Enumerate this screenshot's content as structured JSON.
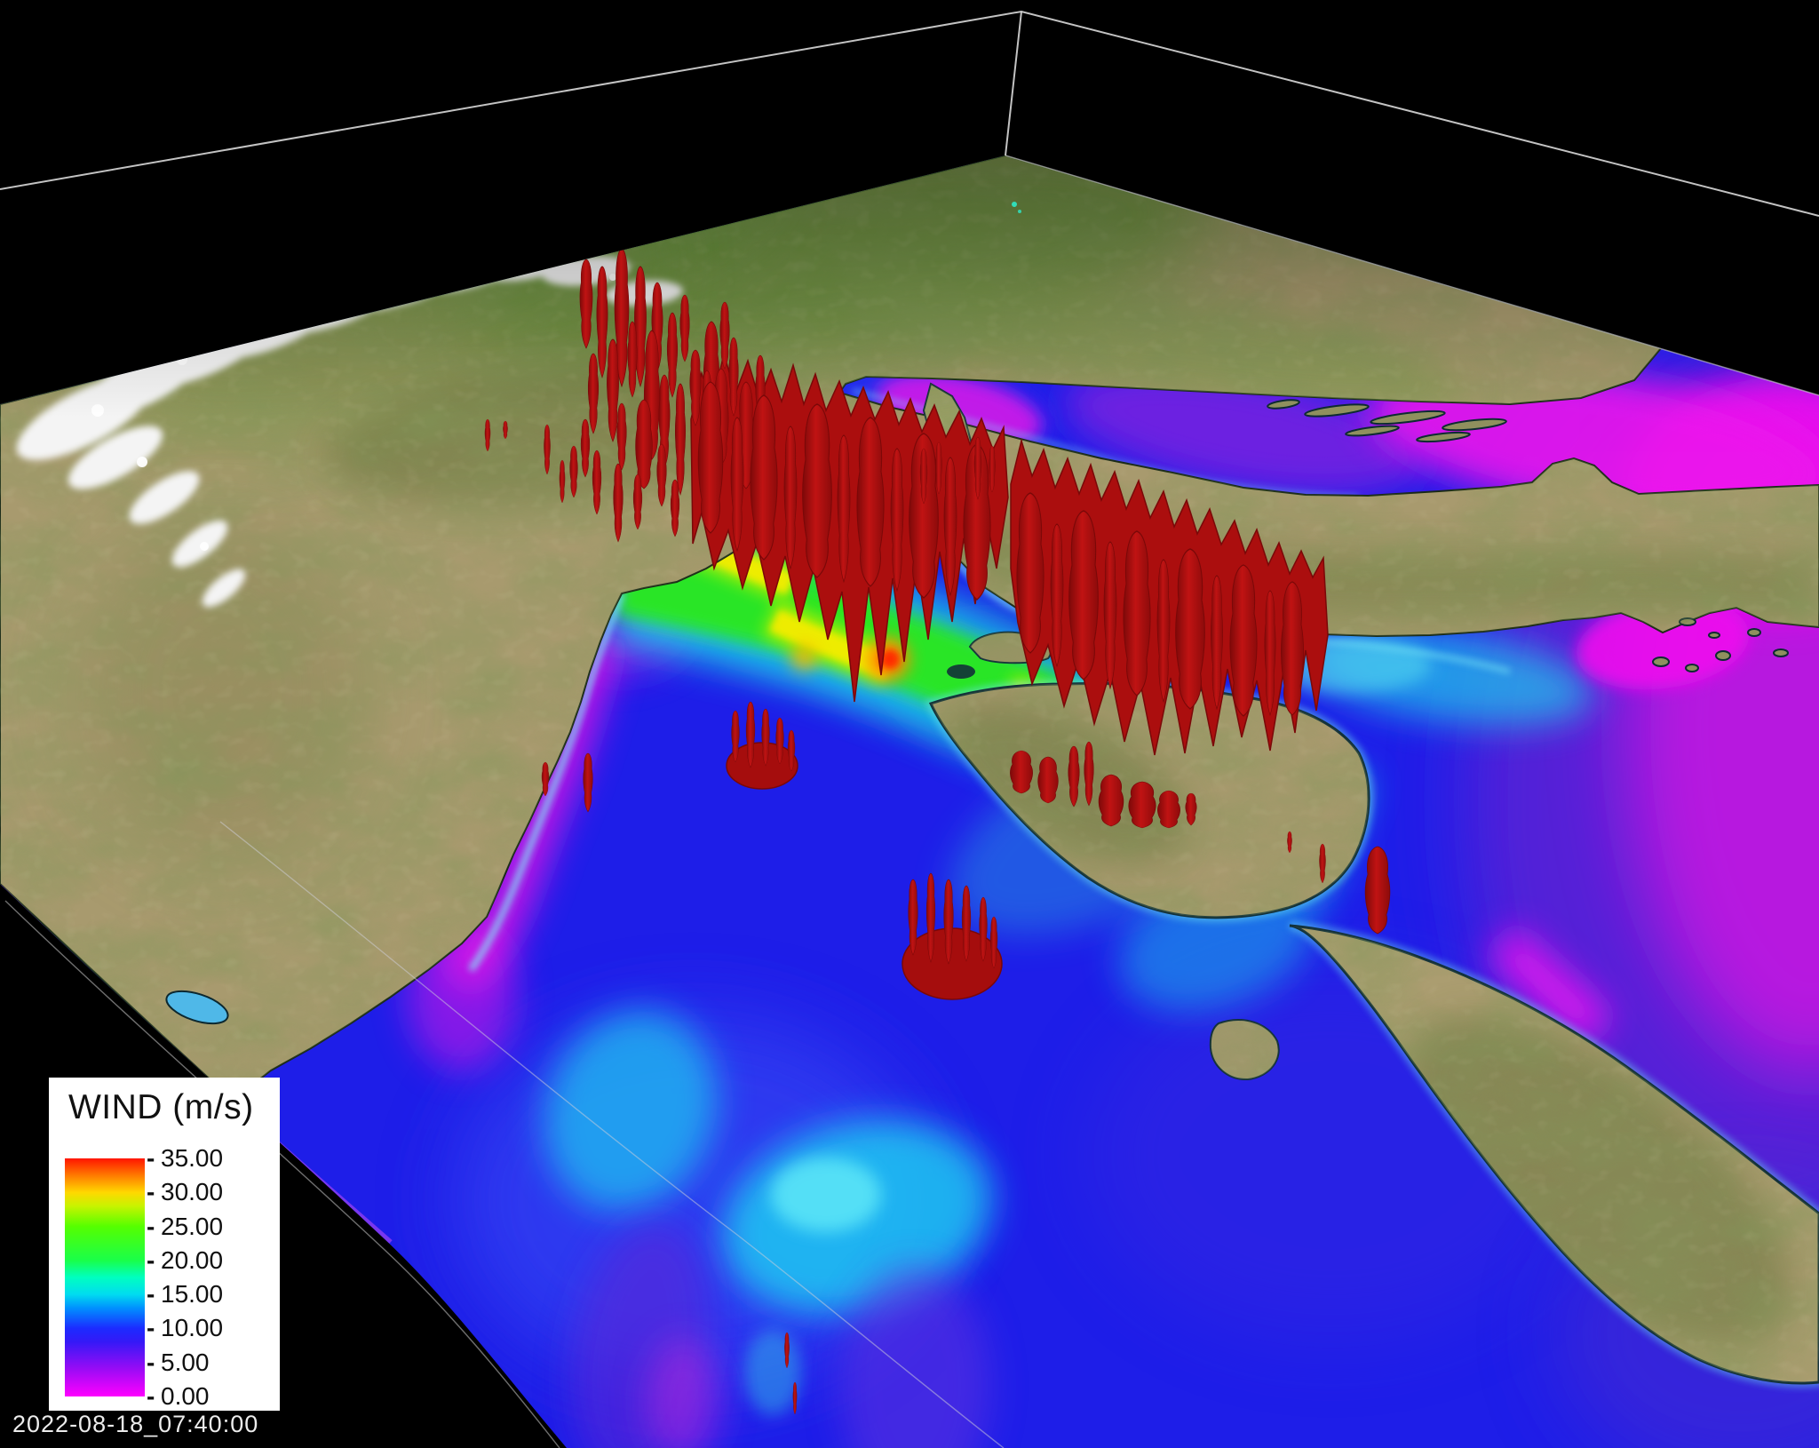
{
  "view": {
    "timestamp": "2022-08-18_07:40:00"
  },
  "legend": {
    "title": "WIND (m/s)",
    "tick_mark": "-",
    "max": 35,
    "ticks": [
      "35.00",
      "30.00",
      "25.00",
      "20.00",
      "15.00",
      "10.00",
      "5.00",
      "0.00"
    ],
    "colormap": [
      {
        "value": 0,
        "color": "#ff00ff"
      },
      {
        "value": 4,
        "color": "#9b0bf5"
      },
      {
        "value": 8,
        "color": "#3519f7"
      },
      {
        "value": 10,
        "color": "#1c2bff"
      },
      {
        "value": 13,
        "color": "#0090ff"
      },
      {
        "value": 15,
        "color": "#00dcf0"
      },
      {
        "value": 17.5,
        "color": "#00ffc0"
      },
      {
        "value": 20,
        "color": "#19ff4a"
      },
      {
        "value": 25,
        "color": "#55ff00"
      },
      {
        "value": 28,
        "color": "#c8f300"
      },
      {
        "value": 30,
        "color": "#ffd800"
      },
      {
        "value": 32.5,
        "color": "#ff7a00"
      },
      {
        "value": 35,
        "color": "#ff1400"
      }
    ]
  },
  "palette": {
    "background": "#000000",
    "wireframe": "#d8d8d8",
    "isosurface_red": "#b01010",
    "land_tan": "#a89a6e",
    "snow_white": "#f4f4f4",
    "sea_base_blue": "#1e1ee8",
    "sea_calm_magenta": "#ee10ee"
  }
}
